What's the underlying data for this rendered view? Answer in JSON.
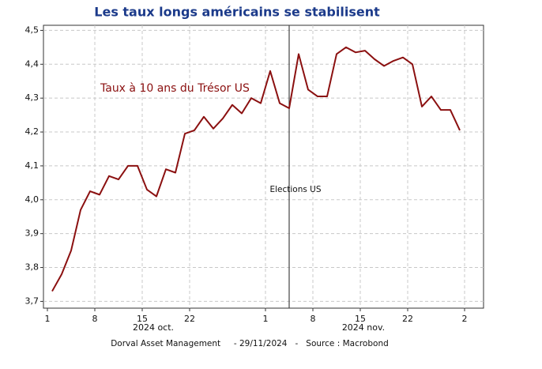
{
  "chart_data": {
    "type": "line",
    "title": "Les taux longs américains se stabilisent",
    "categories": [
      "1",
      null,
      null,
      null,
      null,
      "8",
      null,
      null,
      null,
      null,
      "15",
      null,
      null,
      null,
      null,
      "22",
      null,
      null,
      null,
      null,
      null,
      null,
      null,
      "1",
      null,
      null,
      null,
      null,
      "8",
      null,
      null,
      null,
      null,
      "15",
      null,
      null,
      null,
      null,
      "22",
      null,
      null,
      null,
      null,
      null,
      "2"
    ],
    "category_groups": [
      "2024 oct.",
      "2024 nov."
    ],
    "series": [
      {
        "name": "Taux à 10 ans du Trésor US",
        "color": "#8b1010",
        "values": [
          3.73,
          3.78,
          3.85,
          3.97,
          4.025,
          4.015,
          4.07,
          4.06,
          4.1,
          4.1,
          4.03,
          4.01,
          4.09,
          4.08,
          4.195,
          4.205,
          4.245,
          4.21,
          4.24,
          4.28,
          4.255,
          4.3,
          4.285,
          4.38,
          4.285,
          4.27,
          4.43,
          4.325,
          4.305,
          4.305,
          4.43,
          4.45,
          4.435,
          4.44,
          4.415,
          4.395,
          4.41,
          4.42,
          4.4,
          4.275,
          4.305,
          4.265,
          4.265,
          4.205,
          null
        ]
      }
    ],
    "ylim": [
      3.68,
      4.515
    ],
    "yticks": [
      {
        "value": 3.7,
        "label": "3,7"
      },
      {
        "value": 3.8,
        "label": "3,8"
      },
      {
        "value": 3.9,
        "label": "3,9"
      },
      {
        "value": 4.0,
        "label": "4,0"
      },
      {
        "value": 4.1,
        "label": "4,1"
      },
      {
        "value": 4.2,
        "label": "4,2"
      },
      {
        "value": 4.3,
        "label": "4,3"
      },
      {
        "value": 4.4,
        "label": "4,4"
      },
      {
        "value": 4.5,
        "label": "4,5"
      }
    ],
    "grid": true,
    "annotations": [
      {
        "text": "Elections US",
        "at": 25
      }
    ],
    "source": "Dorval Asset Management     - 29/11/2024   -   Source : Macrobond"
  }
}
